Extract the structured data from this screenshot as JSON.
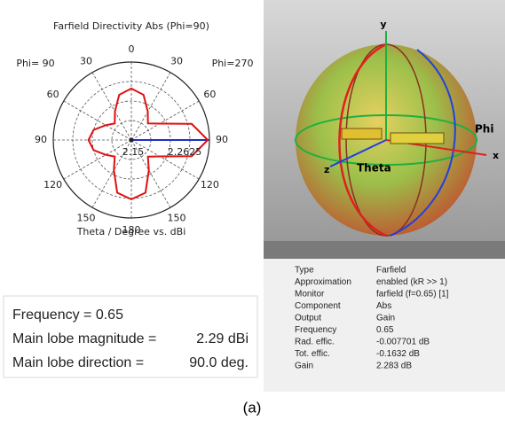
{
  "chart_data": {
    "type": "polar",
    "title": "Farfield Directivity Abs (Phi=90)",
    "left_label": "Phi= 90",
    "right_label": "Phi=270",
    "xlabel": "Theta / Degree vs. dBi",
    "annotations": [
      "2.15",
      "2.2625"
    ],
    "rlim": [
      -30,
      3
    ],
    "angle_ticks": [
      0,
      {
        "value": 30,
        "label": "30"
      },
      {
        "value": 60,
        "label": "60"
      },
      {
        "value": 90,
        "label": "90"
      },
      {
        "value": 120,
        "label": "120"
      },
      {
        "value": 150,
        "label": "150"
      },
      180,
      {
        "value": 210,
        "label": "150"
      },
      {
        "value": 240,
        "label": "120"
      },
      {
        "value": 270,
        "label": "90"
      },
      {
        "value": 300,
        "label": "60"
      },
      {
        "value": 330,
        "label": "30"
      }
    ],
    "x": [
      0,
      15,
      30,
      45,
      60,
      75,
      90,
      105,
      120,
      135,
      150,
      165,
      180,
      195,
      210,
      225,
      240,
      255,
      270,
      285,
      300,
      315,
      330,
      345
    ],
    "series": [
      {
        "color": "#e01010",
        "values": [
          -8.2,
          -10.2,
          -16.1,
          -20.1,
          -16.1,
          -3.6,
          2.29,
          -3.6,
          -16.1,
          -20.1,
          -15.2,
          -6.9,
          -4.9,
          -6.9,
          -15.2,
          -20.1,
          -17.5,
          -13.5,
          -11.9,
          -13.5,
          -17.5,
          -20.1,
          -16.1,
          -10.2
        ]
      }
    ]
  },
  "view3d": {
    "labels": [
      "y",
      "Phi",
      "x",
      "z",
      "Theta"
    ]
  },
  "info": {
    "rows": [
      [
        "Type",
        "Farfield"
      ],
      [
        "Approximation",
        "enabled (kR >> 1)"
      ],
      [
        "Monitor",
        "farfield (f=0.65) [1]"
      ],
      [
        "Component",
        "Abs"
      ],
      [
        "Output",
        "Gain"
      ],
      [
        "Frequency",
        "0.65"
      ],
      [
        "Rad. effic.",
        "-0.007701 dB"
      ],
      [
        "Tot. effic.",
        "-0.1632 dB"
      ],
      [
        "Gain",
        "2.283 dB"
      ]
    ]
  },
  "summary": {
    "lines": [
      [
        "Frequency = 0.65",
        ""
      ],
      [
        "Main lobe magnitude =",
        "2.29 dBi"
      ],
      [
        "Main lobe direction =",
        "90.0 deg."
      ]
    ]
  },
  "caption": "(a)"
}
